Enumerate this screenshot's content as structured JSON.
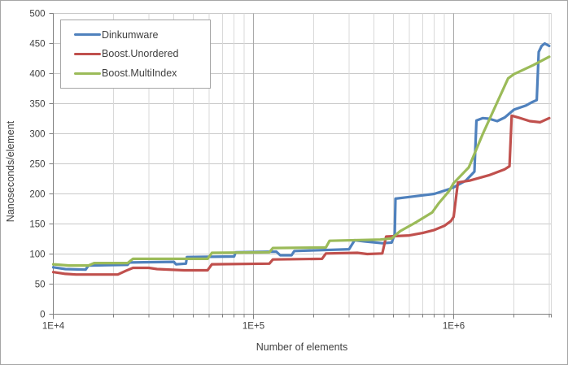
{
  "chart_data": {
    "type": "line",
    "title": "",
    "xlabel": "Number of elements",
    "ylabel": "Nanoseconds/element",
    "x_scale": "log",
    "x_range": [
      10000,
      3050000
    ],
    "ylim": [
      0,
      500
    ],
    "grid": "on",
    "legend_position": "top-left-inside",
    "x_ticks": [
      {
        "label": "1E+4",
        "value": 10000
      },
      {
        "label": "1E+5",
        "value": 100000
      },
      {
        "label": "1E+6",
        "value": 1000000
      }
    ],
    "y_ticks": [
      0,
      50,
      100,
      150,
      200,
      250,
      300,
      350,
      400,
      450,
      500
    ],
    "colors": {
      "gridline_h": "#c9c9c9",
      "gridline_minor": "#d9d9d9",
      "gridline_major": "#a9a9a9",
      "axis": "#808080",
      "text": "#3f3f3f",
      "plot_background": "#ffffff"
    },
    "series": [
      {
        "name": "Dinkumware",
        "color": "#4F81BD",
        "points": [
          [
            10000,
            78
          ],
          [
            11500,
            75
          ],
          [
            14500,
            74
          ],
          [
            15000,
            81
          ],
          [
            23500,
            82
          ],
          [
            24000,
            86
          ],
          [
            40000,
            87
          ],
          [
            41000,
            83
          ],
          [
            46000,
            84
          ],
          [
            46500,
            95
          ],
          [
            80000,
            96
          ],
          [
            81500,
            103
          ],
          [
            130000,
            104
          ],
          [
            136000,
            98
          ],
          [
            155000,
            98
          ],
          [
            160000,
            105
          ],
          [
            300000,
            108
          ],
          [
            320000,
            123
          ],
          [
            360000,
            121
          ],
          [
            440000,
            118
          ],
          [
            490000,
            119
          ],
          [
            508000,
            133
          ],
          [
            512000,
            192
          ],
          [
            800000,
            200
          ],
          [
            950000,
            208
          ],
          [
            1000000,
            211
          ],
          [
            1150000,
            222
          ],
          [
            1270000,
            237
          ],
          [
            1300000,
            322
          ],
          [
            1400000,
            326
          ],
          [
            1500000,
            325
          ],
          [
            1650000,
            321
          ],
          [
            1800000,
            327
          ],
          [
            2000000,
            340
          ],
          [
            2300000,
            347
          ],
          [
            2450000,
            352
          ],
          [
            2600000,
            356
          ],
          [
            2660000,
            436
          ],
          [
            2750000,
            446
          ],
          [
            2850000,
            450
          ],
          [
            3000000,
            446
          ]
        ]
      },
      {
        "name": "Boost.Unordered",
        "color": "#C0504D",
        "points": [
          [
            10000,
            70
          ],
          [
            11500,
            67
          ],
          [
            13000,
            66
          ],
          [
            21000,
            66
          ],
          [
            23000,
            72
          ],
          [
            25000,
            77
          ],
          [
            30000,
            77
          ],
          [
            33000,
            75
          ],
          [
            45000,
            73
          ],
          [
            59000,
            73
          ],
          [
            62000,
            83
          ],
          [
            120000,
            84
          ],
          [
            125000,
            91
          ],
          [
            220000,
            92
          ],
          [
            230000,
            101
          ],
          [
            330000,
            102
          ],
          [
            370000,
            100
          ],
          [
            440000,
            101
          ],
          [
            460000,
            129
          ],
          [
            600000,
            131
          ],
          [
            700000,
            135
          ],
          [
            800000,
            140
          ],
          [
            900000,
            147
          ],
          [
            970000,
            155
          ],
          [
            1000000,
            162
          ],
          [
            1050000,
            219
          ],
          [
            1200000,
            222
          ],
          [
            1500000,
            231
          ],
          [
            1800000,
            241
          ],
          [
            1900000,
            246
          ],
          [
            1950000,
            330
          ],
          [
            2100000,
            327
          ],
          [
            2400000,
            321
          ],
          [
            2700000,
            319
          ],
          [
            3000000,
            326
          ]
        ]
      },
      {
        "name": "Boost.MultiIndex",
        "color": "#9BBB59",
        "points": [
          [
            10000,
            83
          ],
          [
            12000,
            81
          ],
          [
            15000,
            81
          ],
          [
            16000,
            85
          ],
          [
            23500,
            85
          ],
          [
            25000,
            92
          ],
          [
            59000,
            92
          ],
          [
            62000,
            102
          ],
          [
            120000,
            103
          ],
          [
            125000,
            110
          ],
          [
            230000,
            111
          ],
          [
            240000,
            122
          ],
          [
            430000,
            124
          ],
          [
            490000,
            126
          ],
          [
            540000,
            138
          ],
          [
            650000,
            153
          ],
          [
            780000,
            169
          ],
          [
            845000,
            185
          ],
          [
            950000,
            205
          ],
          [
            1000000,
            218
          ],
          [
            1190000,
            244
          ],
          [
            1400000,
            300
          ],
          [
            1870000,
            392
          ],
          [
            2000000,
            399
          ],
          [
            2500000,
            414
          ],
          [
            3000000,
            428
          ]
        ]
      }
    ]
  }
}
